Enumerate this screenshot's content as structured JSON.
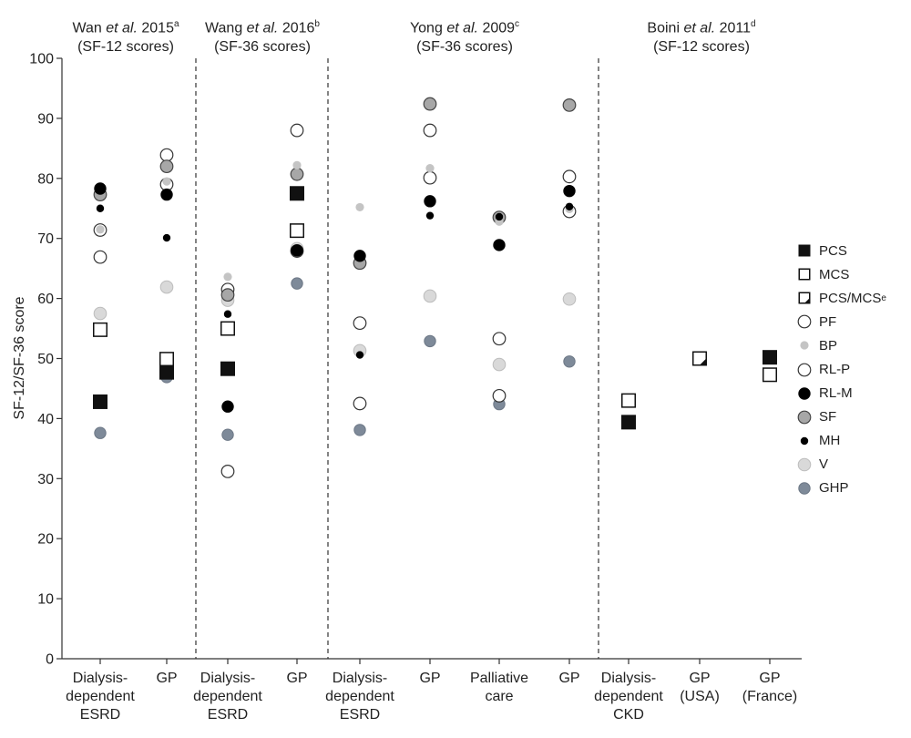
{
  "chart_data": {
    "type": "scatter",
    "ylabel": "SF-12/SF-36 score",
    "ylim": [
      0,
      100
    ],
    "yticks": [
      0,
      10,
      20,
      30,
      40,
      50,
      60,
      70,
      80,
      90,
      100
    ],
    "grid": false,
    "legend_position": "right",
    "studies": [
      {
        "author": "Wan",
        "etal": "et al.",
        "year": "2015",
        "sup": "a",
        "scale": "(SF-12 scores)"
      },
      {
        "author": "Wang",
        "etal": "et al.",
        "year": "2016",
        "sup": "b",
        "scale": "(SF-36 scores)"
      },
      {
        "author": "Yong",
        "etal": "et al.",
        "year": "2009",
        "sup": "c",
        "scale": "(SF-36 scores)"
      },
      {
        "author": "Boini",
        "etal": "et al.",
        "year": "2011",
        "sup": "d",
        "scale": "(SF-12 scores)"
      }
    ],
    "categories": [
      "Dialysis-\ndependent\nESRD",
      "GP",
      "Dialysis-\ndependent\nESRD",
      "GP",
      "Dialysis-\ndependent\nESRD",
      "GP",
      "Palliative\ncare",
      "GP",
      "Dialysis-\ndependent\nCKD",
      "GP\n(USA)",
      "GP\n(France)"
    ],
    "legend": [
      {
        "key": "PCS",
        "label": "PCS",
        "sup": ""
      },
      {
        "key": "MCS",
        "label": "MCS",
        "sup": ""
      },
      {
        "key": "PCSMCS",
        "label": "PCS/MCS",
        "sup": "e"
      },
      {
        "key": "PF",
        "label": "PF",
        "sup": ""
      },
      {
        "key": "BP",
        "label": "BP",
        "sup": ""
      },
      {
        "key": "RLP",
        "label": "RL-P",
        "sup": ""
      },
      {
        "key": "RLM",
        "label": "RL-M",
        "sup": ""
      },
      {
        "key": "SF",
        "label": "SF",
        "sup": ""
      },
      {
        "key": "MH",
        "label": "MH",
        "sup": ""
      },
      {
        "key": "V",
        "label": "V",
        "sup": ""
      },
      {
        "key": "GHP",
        "label": "GHP",
        "sup": ""
      }
    ],
    "marker_colors": {
      "PCS": "#111111",
      "MCS": "#ffffff",
      "PF": "#ffffff",
      "BP": "#c4c4c4",
      "RLP": "#ffffff",
      "RLM": "#000000",
      "SF": "#a7a7a7",
      "MH": "#000000",
      "V": "#d9d9d9",
      "GHP": "#7e8a99"
    },
    "series": [
      {
        "key": "PCS",
        "values": [
          42.8,
          47.7,
          48.3,
          77.5,
          null,
          null,
          null,
          null,
          39.4,
          null,
          50.2
        ]
      },
      {
        "key": "MCS",
        "values": [
          54.8,
          49.9,
          55.0,
          71.3,
          null,
          null,
          null,
          null,
          43.0,
          null,
          47.3
        ]
      },
      {
        "key": "PCSMCS",
        "values": [
          null,
          null,
          null,
          null,
          null,
          null,
          null,
          null,
          null,
          50.0,
          null
        ]
      },
      {
        "key": "PF",
        "values": [
          66.9,
          83.9,
          61.5,
          88.0,
          55.9,
          88.0,
          53.3,
          80.3
        ]
      },
      {
        "key": "BP",
        "values": [
          71.5,
          79.5,
          63.6,
          82.2,
          75.2,
          81.7,
          72.8,
          74.9
        ]
      },
      {
        "key": "RLP",
        "values": [
          71.4,
          79.0,
          31.2,
          67.9,
          42.5,
          80.1,
          43.8,
          74.5
        ]
      },
      {
        "key": "RLM",
        "values": [
          78.3,
          77.3,
          42.0,
          68.0,
          67.1,
          76.2,
          68.9,
          77.9
        ]
      },
      {
        "key": "SF",
        "values": [
          77.3,
          82.0,
          60.6,
          80.7,
          65.9,
          92.4,
          73.5,
          92.2
        ]
      },
      {
        "key": "MH",
        "values": [
          75.0,
          70.1,
          57.4,
          68.2,
          50.6,
          73.8,
          73.6,
          75.3
        ]
      },
      {
        "key": "V",
        "values": [
          57.5,
          61.9,
          59.7,
          68.3,
          51.3,
          60.4,
          49.0,
          59.9
        ]
      },
      {
        "key": "GHP",
        "values": [
          37.6,
          46.9,
          37.3,
          62.5,
          38.1,
          52.9,
          42.4,
          49.5
        ]
      }
    ]
  }
}
